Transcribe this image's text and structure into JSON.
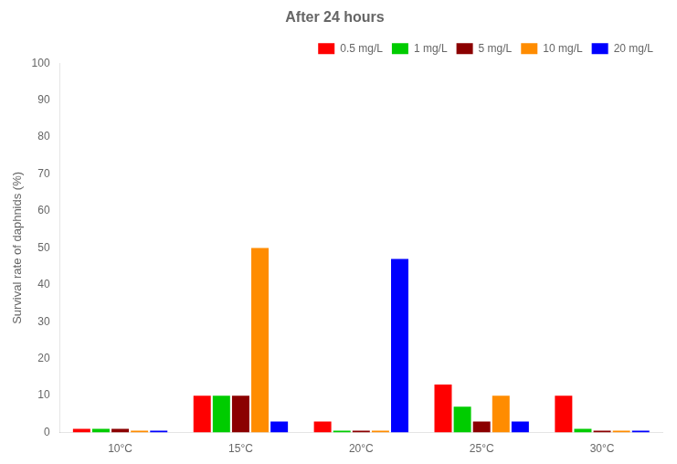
{
  "chart_data": {
    "type": "bar",
    "title": "After 24 hours",
    "y_label": "Survival rate of daphnids (%)",
    "categories": [
      "10°C",
      "15°C",
      "20°C",
      "25°C",
      "30°C"
    ],
    "series": [
      {
        "name": "0.5 mg/L",
        "color": "#ff0000",
        "values": [
          1,
          10,
          3,
          13,
          10
        ]
      },
      {
        "name": "1 mg/L",
        "color": "#00cc00",
        "values": [
          1,
          10,
          0.5,
          7,
          1
        ]
      },
      {
        "name": "5 mg/L",
        "color": "#8b0000",
        "values": [
          1,
          10,
          0.5,
          3,
          0.5
        ]
      },
      {
        "name": "10 mg/L",
        "color": "#ff8c00",
        "values": [
          0.5,
          50,
          0.5,
          10,
          0.5
        ]
      },
      {
        "name": "20 mg/L",
        "color": "#0000ff",
        "values": [
          0.5,
          3,
          47,
          3,
          0.5
        ]
      }
    ],
    "ylim": [
      0,
      100
    ],
    "yticks": [
      0,
      10,
      20,
      30,
      40,
      50,
      60,
      70,
      80,
      90,
      100
    ],
    "grid": false,
    "legend": "upper right"
  }
}
